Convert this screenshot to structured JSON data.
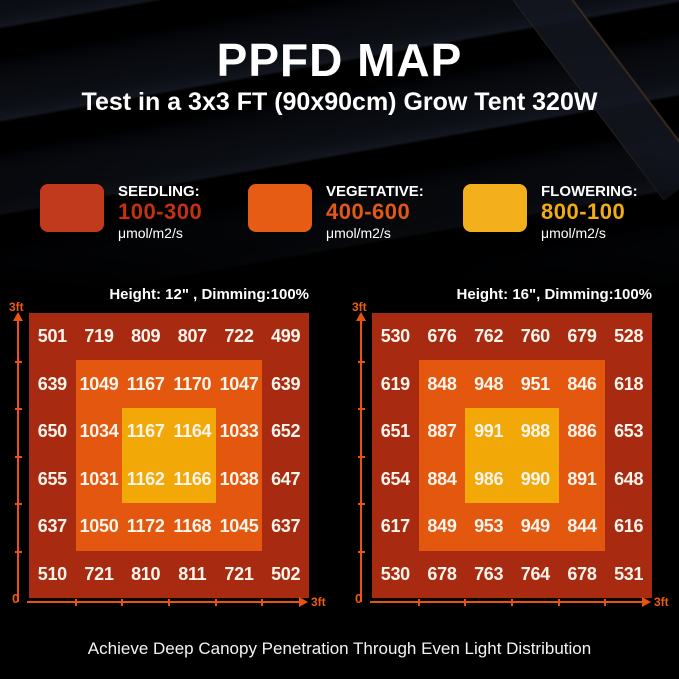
{
  "header": {
    "title": "PPFD MAP",
    "subtitle": "Test in a 3x3 FT (90x90cm) Grow Tent 320W"
  },
  "legend": {
    "items": [
      {
        "label": "SEEDLING:",
        "range": "100-300",
        "unit": "μmol/m2/s",
        "swatch_color": "#C13A1D",
        "range_color": "#C5310F"
      },
      {
        "label": "VEGETATIVE:",
        "range": "400-600",
        "unit": "μmol/m2/s",
        "swatch_color": "#E65C15",
        "range_color": "#E45811"
      },
      {
        "label": "FLOWERING:",
        "range": "800-100",
        "unit": "μmol/m2/s",
        "swatch_color": "#F4AF1C",
        "range_color": "#F3AC14"
      }
    ]
  },
  "chart_data": [
    {
      "type": "heatmap",
      "title": "Height: 12\" , Dimming:100%",
      "unit": "μmol/m2/s",
      "grid_size": [
        6,
        6
      ],
      "x_axis": {
        "start_label": "0",
        "end_label": "3ft"
      },
      "y_axis": {
        "end_label": "3ft"
      },
      "zone_colors": {
        "outer": "#A82A10",
        "middle": "#E4570E",
        "center": "#F2A807"
      },
      "values": [
        [
          501,
          719,
          809,
          807,
          722,
          499
        ],
        [
          639,
          1049,
          1167,
          1170,
          1047,
          639
        ],
        [
          650,
          1034,
          1167,
          1164,
          1033,
          652
        ],
        [
          655,
          1031,
          1162,
          1166,
          1038,
          647
        ],
        [
          637,
          1050,
          1172,
          1168,
          1045,
          637
        ],
        [
          510,
          721,
          810,
          811,
          721,
          502
        ]
      ]
    },
    {
      "type": "heatmap",
      "title": "Height: 16\", Dimming:100%",
      "unit": "μmol/m2/s",
      "grid_size": [
        6,
        6
      ],
      "x_axis": {
        "start_label": "0",
        "end_label": "3ft"
      },
      "y_axis": {
        "end_label": "3ft"
      },
      "zone_colors": {
        "outer": "#A82A10",
        "middle": "#E4570E",
        "center": "#F2A807"
      },
      "values": [
        [
          530,
          676,
          762,
          760,
          679,
          528
        ],
        [
          619,
          848,
          948,
          951,
          846,
          618
        ],
        [
          651,
          887,
          991,
          988,
          886,
          653
        ],
        [
          654,
          884,
          986,
          990,
          891,
          648
        ],
        [
          617,
          849,
          953,
          949,
          844,
          616
        ],
        [
          530,
          678,
          763,
          764,
          678,
          531
        ]
      ]
    }
  ],
  "footer": {
    "text": "Achieve Deep Canopy Penetration Through Even Light Distribution"
  }
}
